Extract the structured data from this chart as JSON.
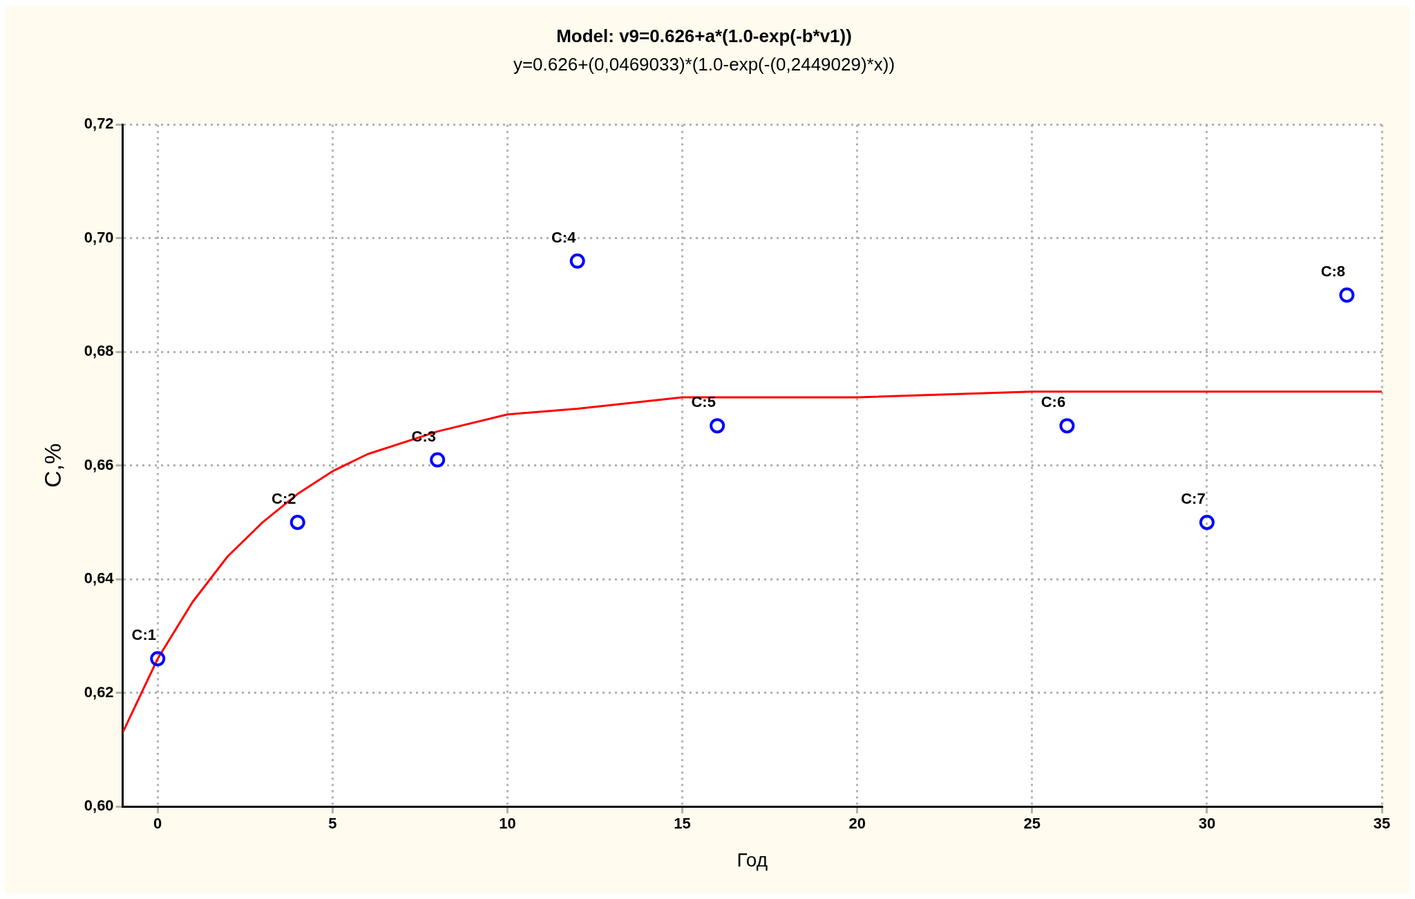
{
  "chart_data": {
    "type": "scatter",
    "title": "Model: v9=0.626+a*(1.0-exp(-b*v1))",
    "subtitle": "y=0.626+(0,0469033)*(1.0-exp(-(0,2449029)*x))",
    "xlabel": "Год",
    "ylabel": "C,%",
    "series": [
      {
        "color": "#0000ff",
        "marker": "circle",
        "x": [
          0,
          4,
          8,
          12,
          16,
          26,
          30,
          34
        ],
        "values": [
          0.626,
          0.65,
          0.661,
          0.696,
          0.667,
          0.667,
          0.65,
          0.69
        ]
      },
      {
        "type": "line",
        "color": "#ff0000",
        "marker": "none",
        "line_style": "solid",
        "x": [
          -1,
          0,
          1,
          2,
          3,
          4,
          5,
          6,
          8,
          10,
          12,
          15,
          20,
          25,
          30,
          35
        ],
        "values": [
          0.613,
          0.626,
          0.636,
          0.644,
          0.65,
          0.655,
          0.659,
          0.662,
          0.666,
          0.669,
          0.67,
          0.672,
          0.672,
          0.673,
          0.673,
          0.673
        ]
      }
    ],
    "annotations": [
      {
        "text": "C:1",
        "x": 0,
        "y": 0.626
      },
      {
        "text": "C:2",
        "x": 4,
        "y": 0.65
      },
      {
        "text": "C:3",
        "x": 8,
        "y": 0.661
      },
      {
        "text": "C:4",
        "x": 12,
        "y": 0.696
      },
      {
        "text": "C:5",
        "x": 16,
        "y": 0.667
      },
      {
        "text": "C:6",
        "x": 26,
        "y": 0.667
      },
      {
        "text": "C:7",
        "x": 30,
        "y": 0.65
      },
      {
        "text": "C:8",
        "x": 34,
        "y": 0.69
      }
    ],
    "xlim": [
      -1,
      35
    ],
    "xticks": [
      0,
      5,
      10,
      15,
      20,
      25,
      30,
      35
    ],
    "ylim": [
      0.6,
      0.72
    ],
    "yticks": [
      {
        "value": 0.6,
        "label": "0,60"
      },
      {
        "value": 0.62,
        "label": "0,62"
      },
      {
        "value": 0.64,
        "label": "0,64"
      },
      {
        "value": 0.66,
        "label": "0,66"
      },
      {
        "value": 0.68,
        "label": "0,68"
      },
      {
        "value": 0.7,
        "label": "0,70"
      },
      {
        "value": 0.72,
        "label": "0,72"
      }
    ],
    "grid": true,
    "legend": false
  }
}
